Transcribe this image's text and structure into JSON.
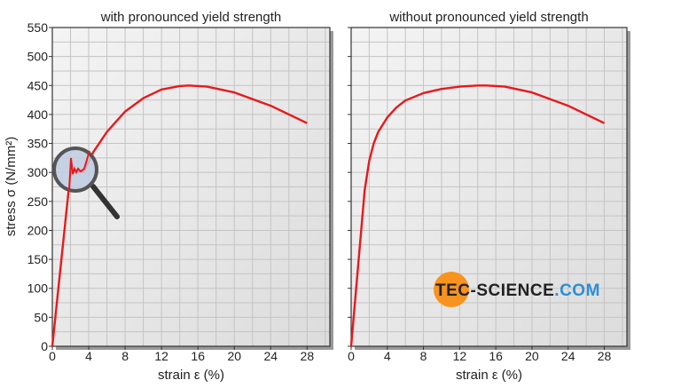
{
  "ylabel": "stress σ (N/mm²)",
  "brand": {
    "part1": "TEC",
    "part2": "-SCIENCE",
    "part3": ".COM",
    "circle_color": "#f7931e",
    "dark_color": "#222222",
    "blue_color": "#2a8fd8"
  },
  "chart_data": [
    {
      "type": "line",
      "title": "with pronounced yield strength",
      "xlabel": "strain ε (%)",
      "ylabel": "stress σ (N/mm²)",
      "xlim": [
        0,
        30.5
      ],
      "ylim": [
        0,
        550
      ],
      "xticks": [
        0,
        4,
        8,
        12,
        16,
        20,
        24,
        28
      ],
      "yticks": [
        0,
        50,
        100,
        150,
        200,
        250,
        300,
        350,
        400,
        450,
        500,
        550
      ],
      "grid": true,
      "color": "#e8191c",
      "x": [
        0,
        2.0,
        2.1,
        2.2,
        2.3,
        2.4,
        2.6,
        2.8,
        3.0,
        3.3,
        3.6,
        4.5,
        6,
        8,
        10,
        12,
        14,
        15,
        17,
        20,
        24,
        28
      ],
      "y": [
        0,
        300,
        318,
        298,
        305,
        300,
        302,
        300,
        302,
        300,
        305,
        335,
        370,
        405,
        428,
        443,
        449,
        450,
        448,
        438,
        415,
        385
      ],
      "annotation": "magnifier-icon over yield point"
    },
    {
      "type": "line",
      "title": "without pronounced yield strength",
      "xlabel": "strain ε (%)",
      "xlim": [
        0,
        30.5
      ],
      "ylim": [
        0,
        550
      ],
      "xticks": [
        0,
        4,
        8,
        12,
        16,
        20,
        24,
        28
      ],
      "yticks": [
        0,
        50,
        100,
        150,
        200,
        250,
        300,
        350,
        400,
        450,
        500,
        550
      ],
      "grid": true,
      "color": "#e8191c",
      "x": [
        0,
        1.5,
        2,
        2.5,
        3,
        4,
        5,
        6,
        8,
        10,
        12,
        14,
        15,
        17,
        20,
        24,
        28
      ],
      "y": [
        0,
        270,
        320,
        350,
        370,
        395,
        412,
        424,
        437,
        444,
        448,
        450,
        450,
        448,
        438,
        415,
        385
      ]
    }
  ]
}
